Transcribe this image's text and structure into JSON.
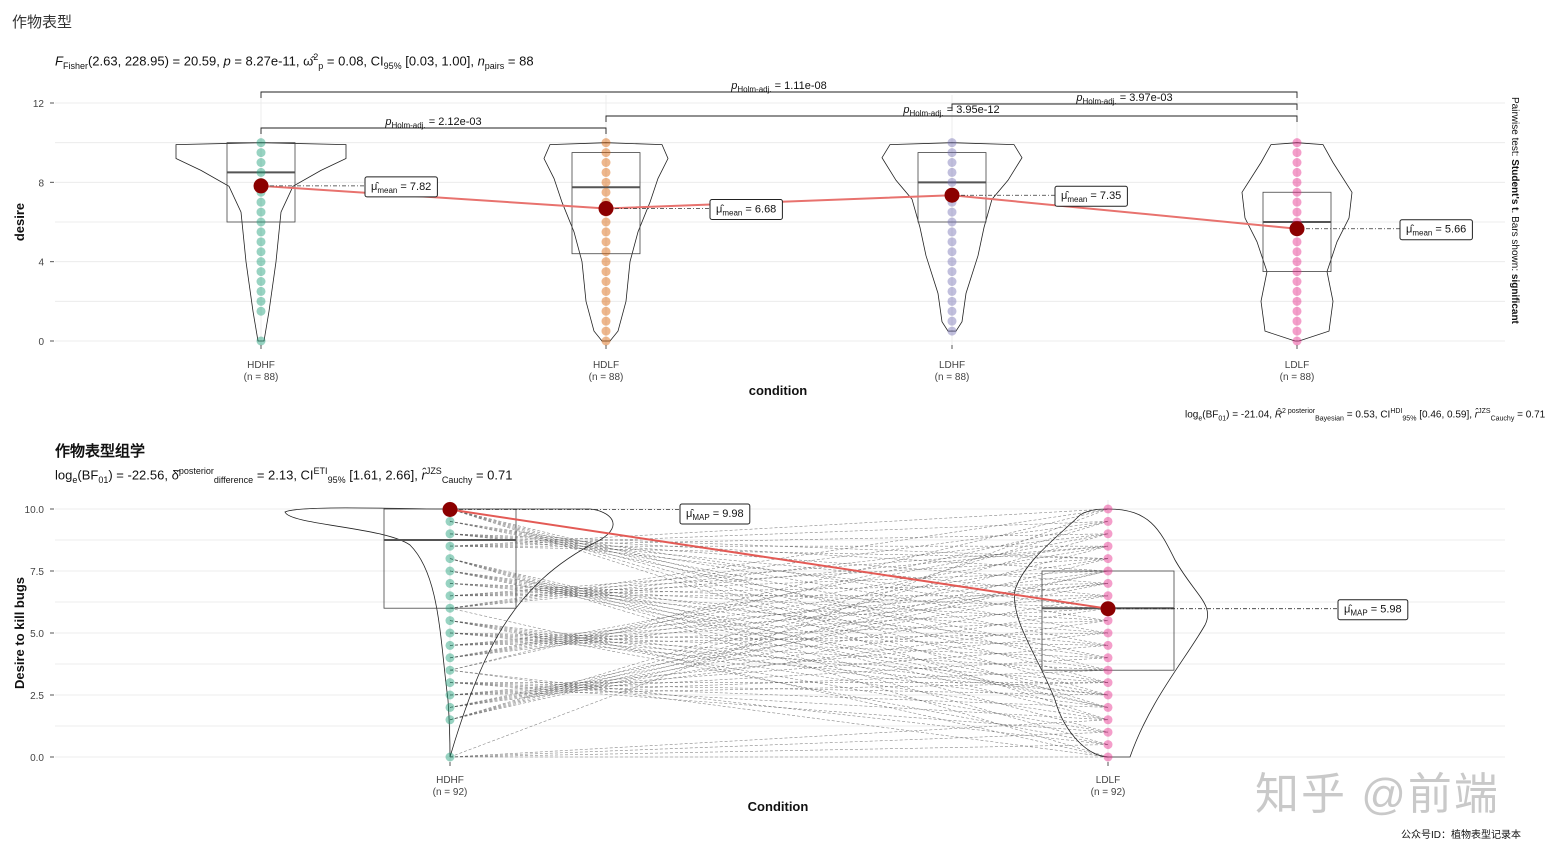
{
  "figure_title": "作物表型",
  "subfigure_title": "作物表型组学",
  "footer": "公众号ID：植物表型记录本",
  "watermark": "知乎 @前端",
  "chart_data": [
    {
      "type": "violin-box-scatter",
      "stats_line": "F Fisher(2.63, 228.95) = 20.59, p = 8.27e-11, ω²p = 0.08, CI95% [0.03, 1.00], n pairs = 88",
      "caption": "log e(BF 01) = -21.04, R² posterior Bayesian = 0.53, CI HDI 95% [0.46, 0.59], r JZS Cauchy = 0.71",
      "side_caption": "Pairwise test: Student's t. Bars shown: significant",
      "xlabel": "condition",
      "ylabel": "desire",
      "ylim": [
        0,
        12
      ],
      "yticks": [
        0,
        4,
        8,
        12
      ],
      "categories": [
        "HDHF",
        "HDLF",
        "LDHF",
        "LDLF"
      ],
      "n_labels": [
        "(n = 88)",
        "(n = 88)",
        "(n = 88)",
        "(n = 88)"
      ],
      "colors": [
        "#1b9e77",
        "#d95f02",
        "#7570b3",
        "#e7298a"
      ],
      "means": [
        7.82,
        6.68,
        7.35,
        5.66
      ],
      "mean_labels": [
        "7.82",
        "6.68",
        "7.35",
        "5.66"
      ],
      "box": [
        {
          "q1": 6.0,
          "median": 8.5,
          "q3": 10.0
        },
        {
          "q1": 4.4,
          "median": 7.75,
          "q3": 9.5
        },
        {
          "q1": 6.0,
          "median": 8.0,
          "q3": 9.5
        },
        {
          "q1": 3.5,
          "median": 6.0,
          "q3": 7.5
        }
      ],
      "points": [
        [
          0,
          1.5,
          2,
          2.5,
          3,
          3.5,
          4,
          4.5,
          5,
          5.5,
          6,
          6.5,
          7,
          7.5,
          8,
          8.5,
          9,
          9.5,
          10
        ],
        [
          0,
          0.5,
          1,
          1.5,
          2,
          2.5,
          3,
          3.5,
          4,
          4.5,
          5,
          5.5,
          6,
          6.5,
          7,
          7.5,
          8,
          8.5,
          9,
          9.5,
          10
        ],
        [
          0.5,
          1,
          1.5,
          2,
          2.5,
          3,
          3.5,
          4,
          4.5,
          5,
          5.5,
          6,
          6.5,
          7,
          7.5,
          8,
          8.5,
          9,
          9.5,
          10
        ],
        [
          0,
          0.5,
          1,
          1.5,
          2,
          2.5,
          3,
          3.5,
          4,
          4.5,
          5,
          5.5,
          6,
          6.5,
          7,
          7.5,
          8,
          8.5,
          9,
          9.5,
          10
        ]
      ],
      "pairwise": [
        {
          "from": 0,
          "to": 1,
          "label": "p Holm-adj. = 2.12e-03"
        },
        {
          "from": 1,
          "to": 3,
          "label": "p Holm-adj. = 3.95e-12"
        },
        {
          "from": 2,
          "to": 3,
          "label": "p Holm-adj. = 3.97e-03"
        },
        {
          "from": 0,
          "to": 3,
          "label": "p Holm-adj. = 1.11e-08"
        }
      ]
    },
    {
      "type": "paired-violin-box-scatter",
      "stats_line": "log e(BF 01) = -22.56, δ posterior difference = 2.13, CI ETI 95% [1.61, 2.66], r JZS Cauchy = 0.71",
      "xlabel": "Condition",
      "ylabel": "Desire to kill bugs",
      "ylim": [
        0,
        10
      ],
      "yticks": [
        0.0,
        2.5,
        5.0,
        7.5,
        10.0
      ],
      "ytick_labels": [
        "0.0",
        "2.5",
        "5.0",
        "7.5",
        "10.0"
      ],
      "categories": [
        "HDHF",
        "LDLF"
      ],
      "n_labels": [
        "(n = 92)",
        "(n = 92)"
      ],
      "colors": [
        "#1b9e77",
        "#e7298a"
      ],
      "map_values": [
        9.98,
        5.98
      ],
      "map_labels": [
        "9.98",
        "5.98"
      ],
      "box": [
        {
          "q1": 6.0,
          "median": 8.75,
          "q3": 10.0
        },
        {
          "q1": 3.5,
          "median": 6.0,
          "q3": 7.5
        }
      ],
      "points": [
        [
          0,
          1.5,
          2,
          2.5,
          3,
          3.5,
          4,
          4.5,
          5,
          5.5,
          6,
          6.5,
          7,
          7.5,
          8,
          8.5,
          9,
          9.5,
          10
        ],
        [
          0,
          0.5,
          1,
          1.5,
          2,
          2.5,
          3,
          3.5,
          4,
          4.5,
          5,
          5.5,
          6,
          6.5,
          7,
          7.5,
          8,
          8.5,
          9,
          9.5,
          10
        ]
      ]
    }
  ]
}
